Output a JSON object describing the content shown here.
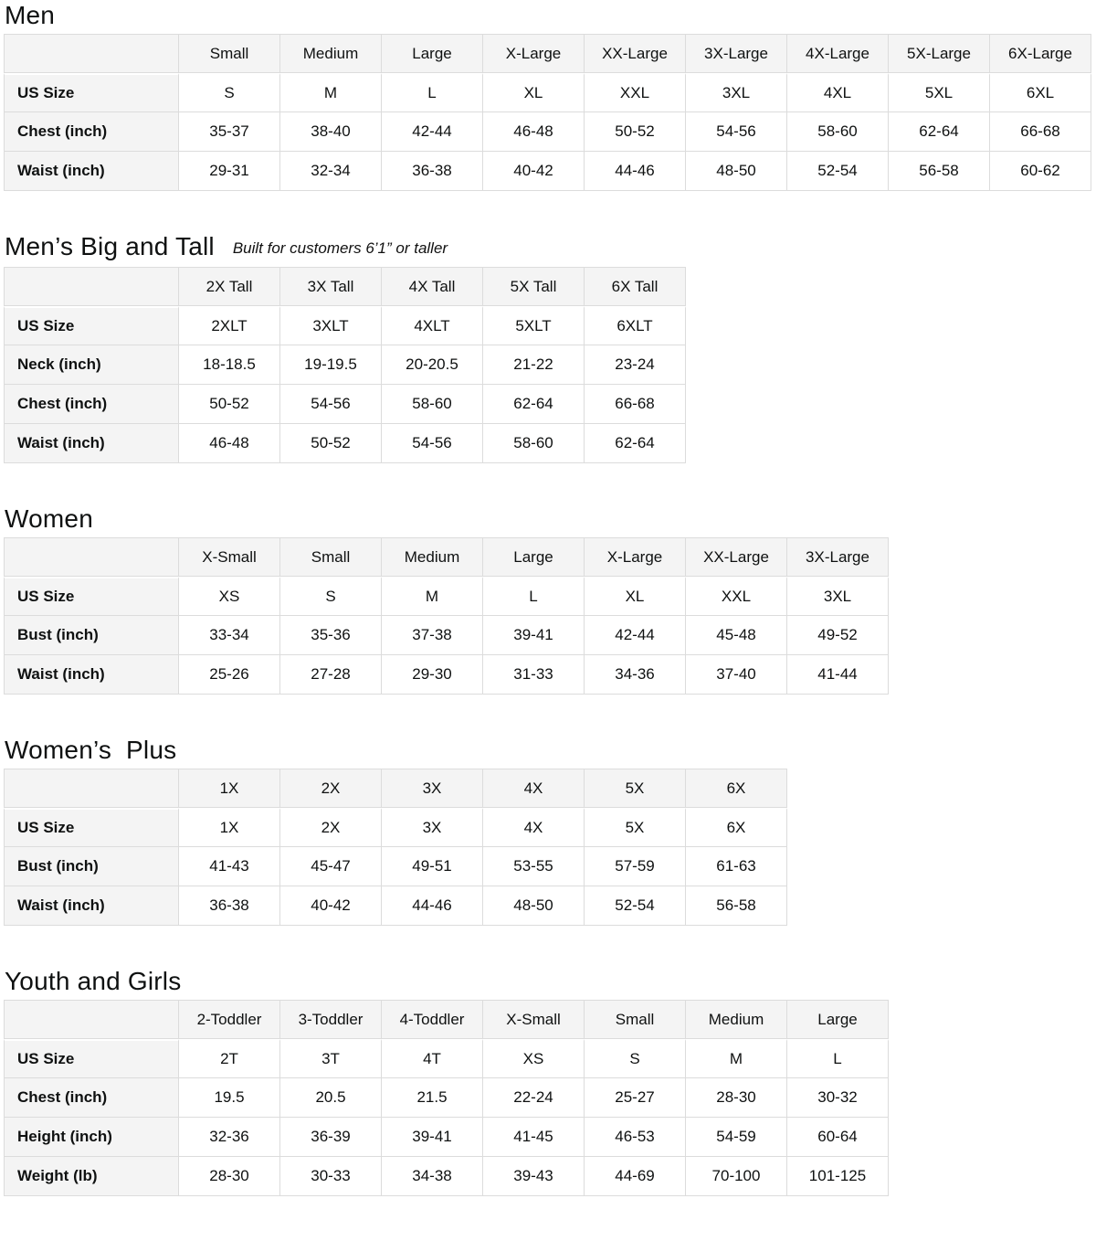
{
  "page": {
    "text_color": "#0f1111",
    "table_header_fill": "#f4f4f4",
    "table_border_color": "#dcdcdc",
    "background": "#ffffff"
  },
  "sections": [
    {
      "title": "Men",
      "subtitle": "",
      "columns": [
        "Small",
        "Medium",
        "Large",
        "X-Large",
        "XX-Large",
        "3X-Large",
        "4X-Large",
        "5X-Large",
        "6X-Large"
      ],
      "rows": [
        {
          "label": "US Size",
          "values": [
            "S",
            "M",
            "L",
            "XL",
            "XXL",
            "3XL",
            "4XL",
            "5XL",
            "6XL"
          ]
        },
        {
          "label": "Chest (inch)",
          "values": [
            "35-37",
            "38-40",
            "42-44",
            "46-48",
            "50-52",
            "54-56",
            "58-60",
            "62-64",
            "66-68"
          ]
        },
        {
          "label": "Waist (inch)",
          "values": [
            "29-31",
            "32-34",
            "36-38",
            "40-42",
            "44-46",
            "48-50",
            "52-54",
            "56-58",
            "60-62"
          ]
        }
      ]
    },
    {
      "title": "Men’s Big and Tall",
      "subtitle": "Built for customers 6’1” or taller",
      "columns": [
        "2X Tall",
        "3X Tall",
        "4X Tall",
        "5X Tall",
        "6X Tall"
      ],
      "rows": [
        {
          "label": "US Size",
          "values": [
            "2XLT",
            "3XLT",
            "4XLT",
            "5XLT",
            "6XLT"
          ]
        },
        {
          "label": "Neck (inch)",
          "values": [
            "18-18.5",
            "19-19.5",
            "20-20.5",
            "21-22",
            "23-24"
          ]
        },
        {
          "label": "Chest (inch)",
          "values": [
            "50-52",
            "54-56",
            "58-60",
            "62-64",
            "66-68"
          ]
        },
        {
          "label": "Waist (inch)",
          "values": [
            "46-48",
            "50-52",
            "54-56",
            "58-60",
            "62-64"
          ]
        }
      ]
    },
    {
      "title": "Women",
      "subtitle": "",
      "columns": [
        "X-Small",
        "Small",
        "Medium",
        "Large",
        "X-Large",
        "XX-Large",
        "3X-Large"
      ],
      "rows": [
        {
          "label": "US Size",
          "values": [
            "XS",
            "S",
            "M",
            "L",
            "XL",
            "XXL",
            "3XL"
          ]
        },
        {
          "label": "Bust (inch)",
          "values": [
            "33-34",
            "35-36",
            "37-38",
            "39-41",
            "42-44",
            "45-48",
            "49-52"
          ]
        },
        {
          "label": "Waist (inch)",
          "values": [
            "25-26",
            "27-28",
            "29-30",
            "31-33",
            "34-36",
            "37-40",
            "41-44"
          ]
        }
      ]
    },
    {
      "title": "Women’s  Plus",
      "subtitle": "",
      "columns": [
        "1X",
        "2X",
        "3X",
        "4X",
        "5X",
        "6X"
      ],
      "rows": [
        {
          "label": "US Size",
          "values": [
            "1X",
            "2X",
            "3X",
            "4X",
            "5X",
            "6X"
          ]
        },
        {
          "label": "Bust (inch)",
          "values": [
            "41-43",
            "45-47",
            "49-51",
            "53-55",
            "57-59",
            "61-63"
          ]
        },
        {
          "label": "Waist (inch)",
          "values": [
            "36-38",
            "40-42",
            "44-46",
            "48-50",
            "52-54",
            "56-58"
          ]
        }
      ]
    },
    {
      "title": "Youth and Girls",
      "subtitle": "",
      "columns": [
        "2-Toddler",
        "3-Toddler",
        "4-Toddler",
        "X-Small",
        "Small",
        "Medium",
        "Large"
      ],
      "rows": [
        {
          "label": "US Size",
          "values": [
            "2T",
            "3T",
            "4T",
            "XS",
            "S",
            "M",
            "L"
          ]
        },
        {
          "label": "Chest (inch)",
          "values": [
            "19.5",
            "20.5",
            "21.5",
            "22-24",
            "25-27",
            "28-30",
            "30-32"
          ]
        },
        {
          "label": "Height (inch)",
          "values": [
            "32-36",
            "36-39",
            "39-41",
            "41-45",
            "46-53",
            "54-59",
            "60-64"
          ]
        },
        {
          "label": "Weight (lb)",
          "values": [
            "28-30",
            "30-33",
            "34-38",
            "39-43",
            "44-69",
            "70-100",
            "101-125"
          ]
        }
      ]
    }
  ]
}
